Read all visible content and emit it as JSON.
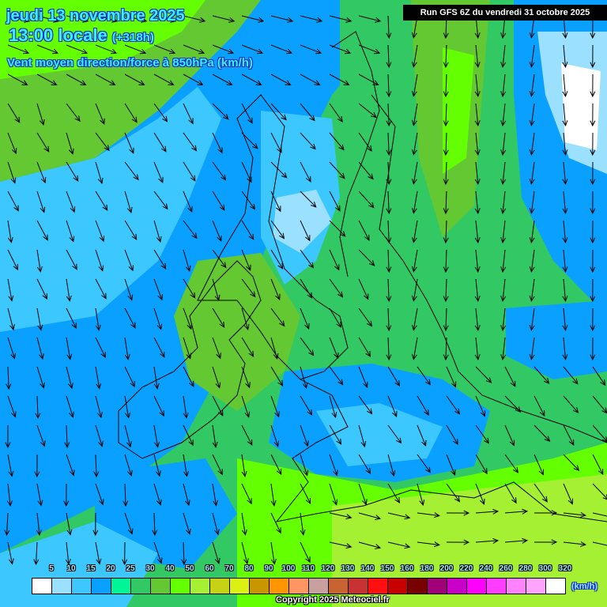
{
  "header": {
    "date": "jeudi 13 novembre 2025",
    "time": "13:00 locale",
    "lead": "(+318h)",
    "parameter": "Vent moyen direction/force à 850hPa (km/h)",
    "run": "Run GFS 6Z du vendredi 31 octobre 2025"
  },
  "legend": {
    "unit": "(km/h)",
    "labels": [
      "5",
      "10",
      "15",
      "20",
      "25",
      "30",
      "40",
      "50",
      "60",
      "70",
      "80",
      "90",
      "100",
      "110",
      "120",
      "130",
      "140",
      "150",
      "160",
      "180",
      "200",
      "220",
      "240",
      "260",
      "280",
      "300",
      "320"
    ],
    "colors": [
      "#ffffff",
      "#9be1ff",
      "#3cc8ff",
      "#0aa0ff",
      "#00f596",
      "#32c864",
      "#64c832",
      "#64ff00",
      "#a5f032",
      "#c8d214",
      "#dcf014",
      "#c89600",
      "#ff9600",
      "#ff9664",
      "#c8a0a0",
      "#c86432",
      "#c83232",
      "#ff0f0f",
      "#c80000",
      "#780000",
      "#a00078",
      "#c800c8",
      "#ff00ff",
      "#ff3cff",
      "#ff82ff",
      "#ffa5ff",
      "#ffffff"
    ]
  },
  "copyright": "Copyright 2025 Meteociel.fr"
}
